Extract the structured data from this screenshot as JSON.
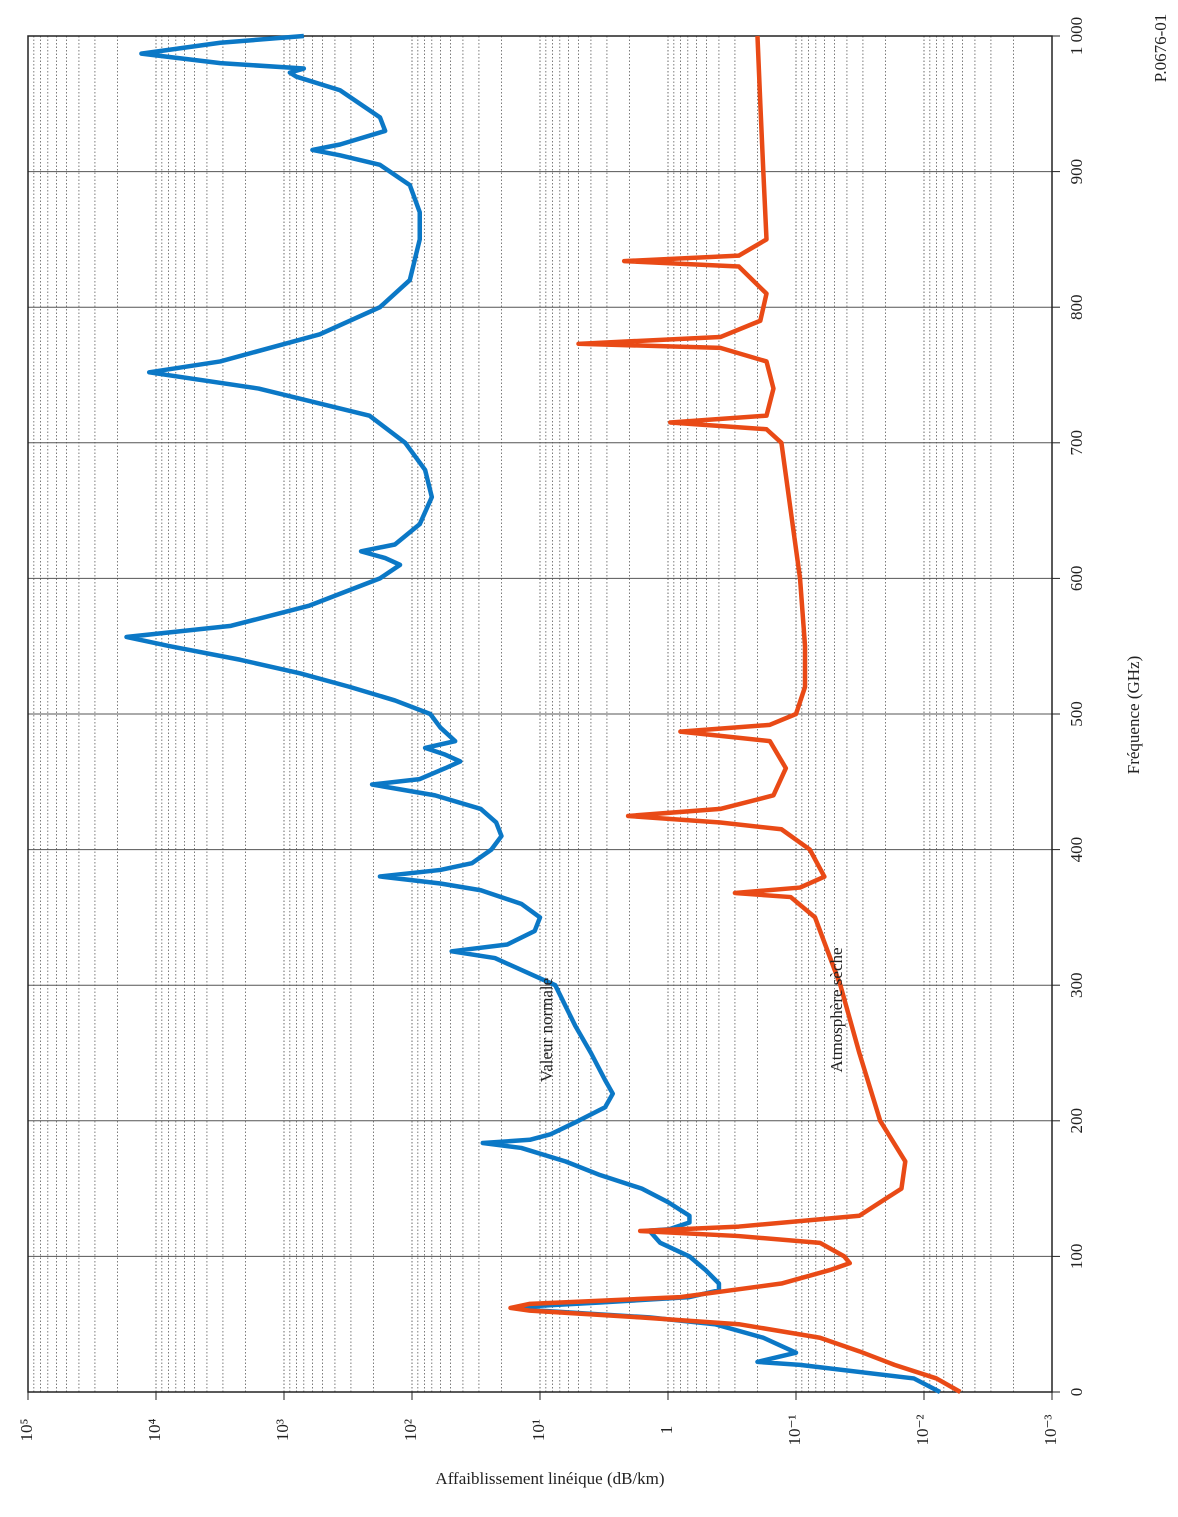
{
  "chart_data": {
    "type": "line",
    "x_label": "Fréquence (GHz)",
    "y_label": "Affaiblissement linéique (dB/km)",
    "figure_id": "P.0676-01",
    "xlim": [
      0,
      1000
    ],
    "xticks": [
      0,
      100,
      200,
      300,
      400,
      500,
      600,
      700,
      800,
      900,
      {
        "value": 1000,
        "label": "1 000"
      }
    ],
    "ylim": [
      0.001,
      100000
    ],
    "y_log": true,
    "minor_grid": true,
    "yticks": [
      {
        "value": 100000,
        "label": "10⁵"
      },
      {
        "value": 10000,
        "label": "10⁴"
      },
      {
        "value": 1000,
        "label": "10³"
      },
      {
        "value": 100,
        "label": "10²"
      },
      {
        "value": 10,
        "label": "10¹"
      },
      1,
      {
        "value": 0.1,
        "label": "10⁻¹"
      },
      {
        "value": 0.01,
        "label": "10⁻²"
      },
      {
        "value": 0.001,
        "label": "10⁻³"
      }
    ],
    "series": [
      {
        "name": "Valeur normale",
        "color": "#0b78c6",
        "x": [
          0,
          10,
          20,
          22.2,
          29,
          40,
          50,
          55,
          60,
          62.7,
          66,
          70,
          75,
          80,
          90,
          100,
          110,
          119,
          120,
          125,
          130,
          140,
          150,
          160,
          170,
          180,
          183.6,
          186,
          190,
          200,
          210,
          220,
          230,
          250,
          270,
          300,
          320,
          325,
          330,
          340,
          350,
          360,
          370,
          375,
          380.2,
          385,
          390,
          400,
          410,
          420,
          430,
          440,
          448,
          452,
          460,
          465,
          470,
          475,
          480,
          490,
          500,
          510,
          520,
          530,
          540,
          550,
          556.8,
          565,
          580,
          600,
          610,
          615,
          620,
          625,
          640,
          660,
          680,
          700,
          720,
          740,
          752,
          760,
          780,
          800,
          820,
          850,
          870,
          890,
          905,
          912,
          916,
          920,
          930,
          940,
          960,
          970,
          973,
          976,
          980,
          987,
          995,
          1000
        ],
        "values": [
          0.0075,
          0.012,
          0.093,
          0.2,
          0.1,
          0.18,
          0.43,
          1.4,
          10,
          15,
          3.4,
          0.68,
          0.4,
          0.4,
          0.51,
          0.68,
          1.15,
          1.4,
          0.98,
          0.68,
          0.68,
          1,
          1.6,
          3.4,
          6.3,
          14,
          28,
          12,
          8.3,
          5,
          3.1,
          2.7,
          3.1,
          4,
          5.3,
          7.6,
          22.5,
          49,
          18,
          11,
          10,
          14,
          29,
          60,
          178,
          60,
          34,
          24,
          20,
          22,
          29,
          66,
          205,
          87,
          55,
          42,
          55,
          79,
          46,
          60,
          72,
          136,
          307,
          750,
          2200,
          7800,
          17000,
          2600,
          630,
          178,
          124,
          162,
          250,
          136,
          87,
          70,
          79,
          113,
          215,
          1580,
          11300,
          3150,
          525,
          178,
          104,
          87,
          87,
          104,
          178,
          365,
          600,
          365,
          162,
          178,
          365,
          800,
          900,
          700,
          3150,
          13000,
          3150,
          700
        ]
      },
      {
        "name": "Atmosphère sèche",
        "color": "#e94a16",
        "x": [
          0,
          10,
          20,
          30,
          40,
          50,
          55,
          60,
          62,
          65,
          70,
          80,
          90,
          95,
          100,
          110,
          115,
          118.75,
          122,
          130,
          150,
          170,
          200,
          250,
          300,
          350,
          365,
          368,
          372,
          380,
          400,
          415,
          420,
          424.8,
          430,
          440,
          460,
          480,
          487,
          492,
          500,
          520,
          550,
          600,
          650,
          700,
          710,
          715,
          720,
          740,
          760,
          770,
          773,
          778,
          790,
          810,
          830,
          834,
          838,
          850,
          900,
          950,
          1000
        ],
        "values": [
          0.0052,
          0.008,
          0.017,
          0.032,
          0.065,
          0.28,
          1.65,
          12,
          17,
          12,
          0.8,
          0.13,
          0.054,
          0.038,
          0.042,
          0.065,
          0.28,
          1.65,
          0.28,
          0.032,
          0.015,
          0.014,
          0.022,
          0.032,
          0.045,
          0.071,
          0.11,
          0.3,
          0.093,
          0.06,
          0.078,
          0.13,
          0.39,
          2.05,
          0.39,
          0.15,
          0.12,
          0.16,
          0.8,
          0.16,
          0.1,
          0.085,
          0.085,
          0.093,
          0.11,
          0.13,
          0.17,
          0.96,
          0.17,
          0.15,
          0.17,
          0.39,
          5,
          0.39,
          0.19,
          0.17,
          0.28,
          2.2,
          0.28,
          0.17,
          0.18,
          0.19,
          0.2
        ]
      }
    ]
  }
}
